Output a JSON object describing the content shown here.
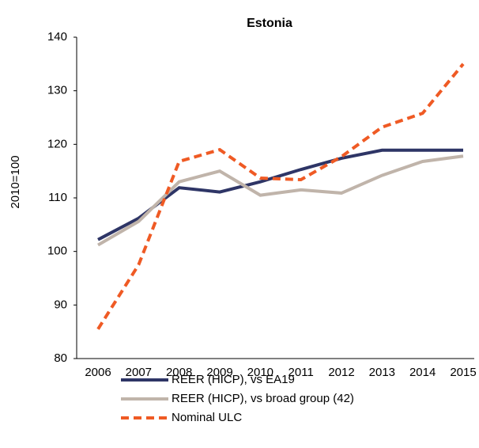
{
  "chart_data": {
    "type": "line",
    "title": "Estonia",
    "y_label": "2010=100",
    "categories": [
      "2006",
      "2007",
      "2008",
      "2009",
      "2010",
      "2011",
      "2012",
      "2013",
      "2014",
      "2015"
    ],
    "series": [
      {
        "name": "REER (HICP), vs EA19",
        "color": "#2e3566",
        "dashed": false,
        "values": [
          102.2,
          106.2,
          111.9,
          111.1,
          113,
          115.3,
          117.4,
          118.9,
          118.9,
          118.9
        ]
      },
      {
        "name": "REER (HICP), vs broad group (42)",
        "color": "#c0b4aa",
        "dashed": false,
        "values": [
          101.2,
          105.6,
          113,
          115,
          110.5,
          111.5,
          110.9,
          114.2,
          116.8,
          117.8
        ]
      },
      {
        "name": "Nominal ULC",
        "color": "#ef5a24",
        "dashed": true,
        "values": [
          85.5,
          97.5,
          116.8,
          119,
          113.7,
          113.4,
          117.7,
          123.2,
          125.8,
          135
        ]
      }
    ],
    "ylim": [
      80,
      140
    ],
    "yticks": [
      80,
      90,
      100,
      110,
      120,
      130,
      140
    ],
    "grid": false
  }
}
